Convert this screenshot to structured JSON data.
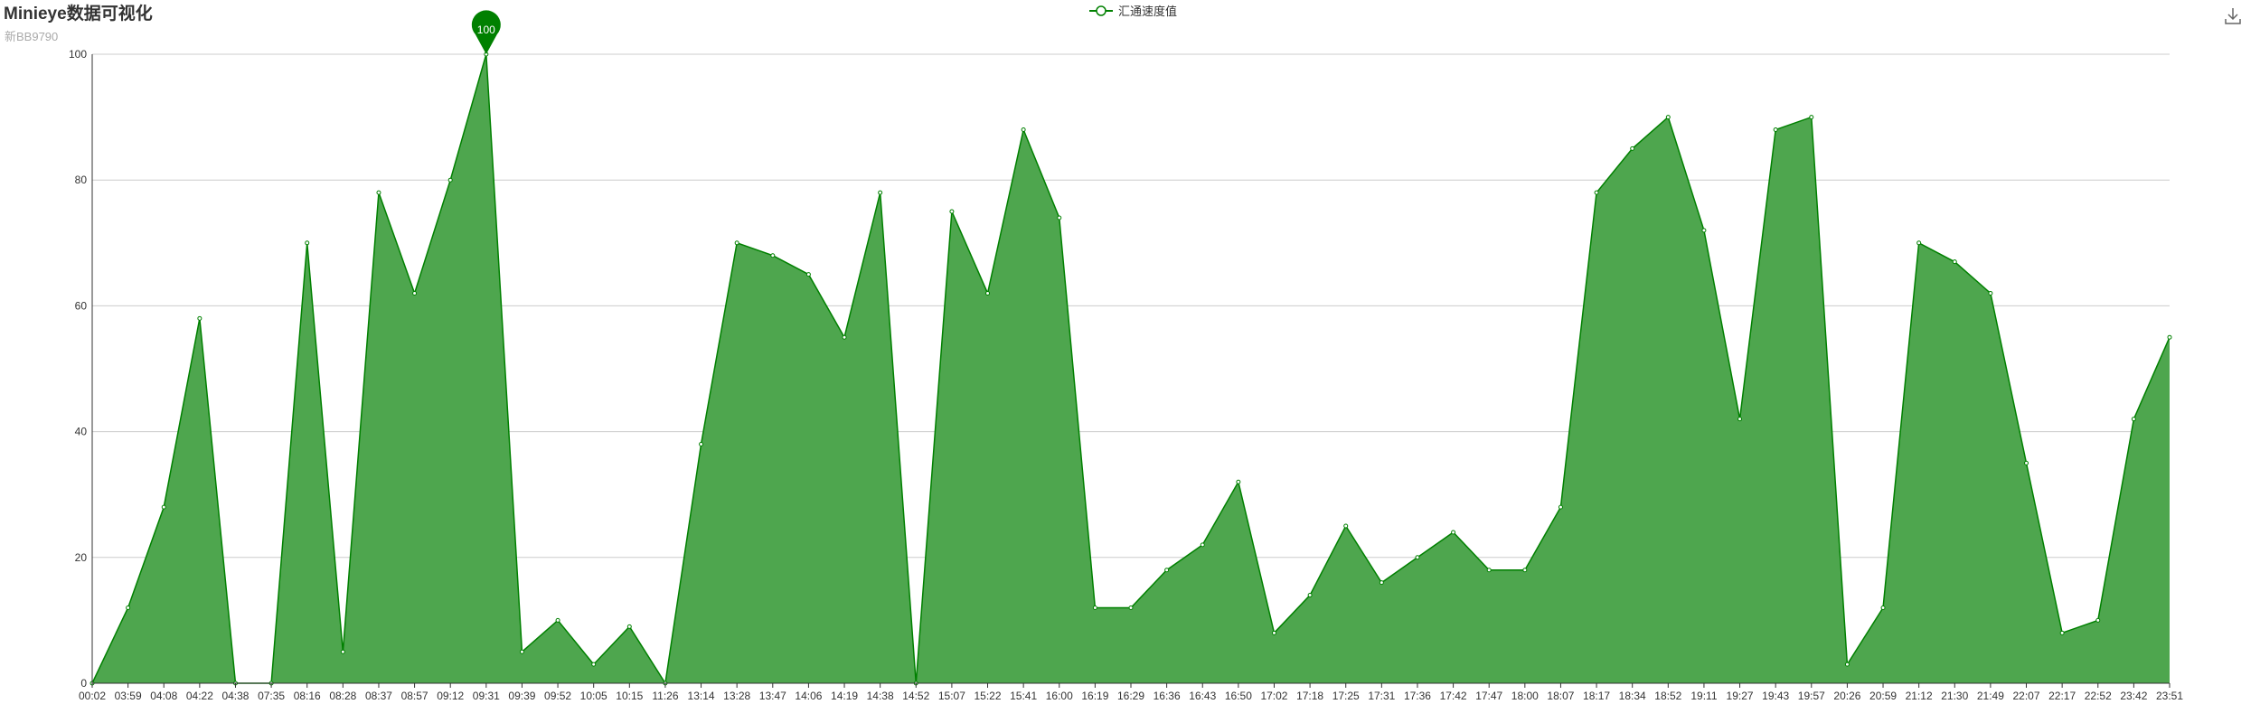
{
  "title": "Minieye数据可视化",
  "subtitle": "新BB9790",
  "legend": {
    "label": "汇通速度值",
    "color": "#008000"
  },
  "toolbox": {
    "download_icon": "download-icon"
  },
  "chart_data": {
    "type": "area",
    "series": [
      {
        "name": "汇通速度值",
        "color": "#008000",
        "fill": "#4ea64e"
      }
    ],
    "x": [
      "00:02",
      "03:59",
      "04:08",
      "04:22",
      "04:38",
      "07:35",
      "08:16",
      "08:28",
      "08:37",
      "08:57",
      "09:12",
      "09:31",
      "09:39",
      "09:52",
      "10:05",
      "10:15",
      "11:26",
      "13:14",
      "13:28",
      "13:47",
      "14:06",
      "14:19",
      "14:38",
      "14:52",
      "15:07",
      "15:22",
      "15:41",
      "16:00",
      "16:19",
      "16:29",
      "16:36",
      "16:43",
      "16:50",
      "17:02",
      "17:18",
      "17:25",
      "17:31",
      "17:36",
      "17:42",
      "17:47",
      "18:00",
      "18:07",
      "18:17",
      "18:34",
      "18:52",
      "19:11",
      "19:27",
      "19:43",
      "19:57",
      "20:26",
      "20:59",
      "21:12",
      "21:30",
      "21:49",
      "22:07",
      "22:17",
      "22:52",
      "23:42",
      "23:51"
    ],
    "y": [
      0,
      12,
      28,
      58,
      0,
      0,
      70,
      5,
      78,
      62,
      80,
      100,
      5,
      10,
      3,
      9,
      0,
      38,
      70,
      68,
      65,
      55,
      78,
      0,
      75,
      62,
      88,
      74,
      12,
      12,
      18,
      22,
      32,
      8,
      14,
      25,
      16,
      20,
      24,
      18,
      18,
      28,
      78,
      85,
      90,
      72,
      42,
      88,
      90,
      3,
      12,
      70,
      67,
      62,
      35,
      8,
      10,
      42,
      55
    ],
    "ylim": [
      0,
      100
    ],
    "yticks": [
      0,
      20,
      40,
      60,
      80,
      100
    ],
    "markpoint": {
      "label": "100",
      "value": 100,
      "x": "09:31",
      "type": "max"
    },
    "grid": true,
    "legend_position": "top-center"
  }
}
